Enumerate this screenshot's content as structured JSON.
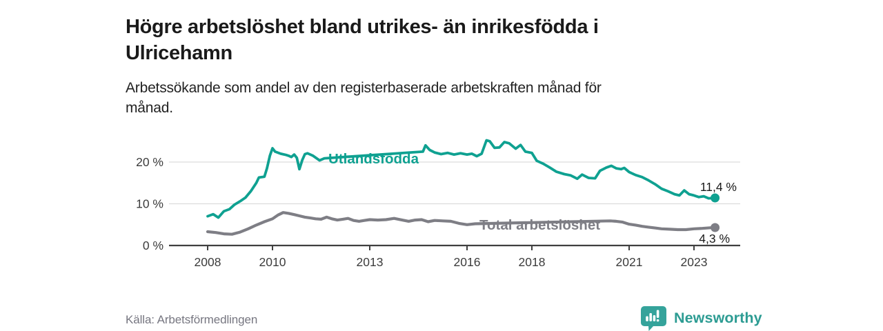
{
  "header": {
    "title_line1": "Högre arbetslöshet bland utrikes- än inrikesfödda i",
    "title_line2": "Ulricehamn",
    "subtitle_line1": "Arbetssökande som andel av den registerbaserade arbetskraften månad för",
    "subtitle_line2": "månad."
  },
  "footer": {
    "source": "Källa: Arbetsförmedlingen",
    "logo_text": "Newsworthy",
    "logo_icon": "bar-chart-speech-bubble-icon"
  },
  "colors": {
    "teal_line": "#0FA191",
    "gray_line": "#7E7E85",
    "title_text": "#1a1a1a",
    "axis_text": "#3c3c3c",
    "gridline": "#dcdcdc",
    "axis_line": "#3f3f3f",
    "value_label_text": "#1a1a1a",
    "source_text": "#767680",
    "logo_teal": "#35a39b",
    "logo_wordmark": "#2d9c93"
  },
  "chart_data": {
    "type": "line",
    "title": "Högre arbetslöshet bland utrikes- än inrikesfödda i Ulricehamn",
    "subtitle": "Arbetssökande som andel av den registerbaserade arbetskraften månad för månad.",
    "unit": "%",
    "grid": "horizontal-only",
    "legend": "inline-labels-on-lines",
    "x_axis": {
      "range": [
        2007.8,
        2024.2
      ],
      "ticks": [
        {
          "year": 2008,
          "label": "2008"
        },
        {
          "year": 2010,
          "label": "2010"
        },
        {
          "year": 2013,
          "label": "2013"
        },
        {
          "year": 2016,
          "label": "2016"
        },
        {
          "year": 2018,
          "label": "2018"
        },
        {
          "year": 2021,
          "label": "2021"
        },
        {
          "year": 2023,
          "label": "2023"
        }
      ]
    },
    "y_axis": {
      "range": [
        0,
        27
      ],
      "ticks": [
        {
          "value": 0,
          "label": "0 %"
        },
        {
          "value": 10,
          "label": "10 %"
        },
        {
          "value": 20,
          "label": "20 %"
        }
      ]
    },
    "series": [
      {
        "name": "Utlandsfödda",
        "color": "#0FA191",
        "end_label": "11,4 %",
        "end_value": 11.4,
        "label_gap_years": [
          2011.66,
          2014.6
        ],
        "points": [
          [
            2008.0,
            7.0
          ],
          [
            2008.17,
            7.5
          ],
          [
            2008.33,
            6.7
          ],
          [
            2008.5,
            8.2
          ],
          [
            2008.67,
            8.7
          ],
          [
            2008.83,
            9.8
          ],
          [
            2009.0,
            10.6
          ],
          [
            2009.17,
            11.5
          ],
          [
            2009.33,
            13.0
          ],
          [
            2009.5,
            15.0
          ],
          [
            2009.58,
            16.3
          ],
          [
            2009.75,
            16.5
          ],
          [
            2009.83,
            18.5
          ],
          [
            2009.92,
            21.5
          ],
          [
            2010.0,
            23.3
          ],
          [
            2010.08,
            22.5
          ],
          [
            2010.25,
            22.0
          ],
          [
            2010.42,
            21.7
          ],
          [
            2010.5,
            21.5
          ],
          [
            2010.58,
            21.2
          ],
          [
            2010.67,
            21.8
          ],
          [
            2010.75,
            21.0
          ],
          [
            2010.83,
            18.3
          ],
          [
            2010.92,
            20.5
          ],
          [
            2011.0,
            21.9
          ],
          [
            2011.08,
            22.1
          ],
          [
            2011.25,
            21.5
          ],
          [
            2011.45,
            20.4
          ],
          [
            2011.6,
            20.9
          ],
          [
            2014.64,
            22.5
          ],
          [
            2014.72,
            24.0
          ],
          [
            2014.85,
            22.9
          ],
          [
            2015.0,
            22.3
          ],
          [
            2015.2,
            21.9
          ],
          [
            2015.4,
            22.2
          ],
          [
            2015.6,
            21.8
          ],
          [
            2015.8,
            22.1
          ],
          [
            2016.0,
            21.8
          ],
          [
            2016.15,
            22.0
          ],
          [
            2016.3,
            21.4
          ],
          [
            2016.45,
            22.0
          ],
          [
            2016.6,
            25.2
          ],
          [
            2016.7,
            25.0
          ],
          [
            2016.85,
            23.4
          ],
          [
            2017.0,
            23.5
          ],
          [
            2017.15,
            24.8
          ],
          [
            2017.3,
            24.5
          ],
          [
            2017.5,
            23.2
          ],
          [
            2017.65,
            24.1
          ],
          [
            2017.8,
            22.5
          ],
          [
            2018.0,
            22.2
          ],
          [
            2018.15,
            20.3
          ],
          [
            2018.35,
            19.6
          ],
          [
            2018.55,
            18.7
          ],
          [
            2018.75,
            17.7
          ],
          [
            2019.0,
            17.1
          ],
          [
            2019.2,
            16.8
          ],
          [
            2019.4,
            16.0
          ],
          [
            2019.55,
            17.0
          ],
          [
            2019.75,
            16.2
          ],
          [
            2019.95,
            16.1
          ],
          [
            2020.1,
            17.9
          ],
          [
            2020.3,
            18.7
          ],
          [
            2020.45,
            19.1
          ],
          [
            2020.6,
            18.5
          ],
          [
            2020.75,
            18.3
          ],
          [
            2020.85,
            18.6
          ],
          [
            2021.0,
            17.6
          ],
          [
            2021.2,
            16.9
          ],
          [
            2021.4,
            16.4
          ],
          [
            2021.6,
            15.6
          ],
          [
            2021.8,
            14.7
          ],
          [
            2022.0,
            13.6
          ],
          [
            2022.2,
            13.0
          ],
          [
            2022.4,
            12.3
          ],
          [
            2022.55,
            12.0
          ],
          [
            2022.7,
            13.2
          ],
          [
            2022.85,
            12.3
          ],
          [
            2023.0,
            12.0
          ],
          [
            2023.15,
            11.6
          ],
          [
            2023.3,
            11.8
          ],
          [
            2023.45,
            11.3
          ],
          [
            2023.65,
            11.4
          ]
        ]
      },
      {
        "name": "Total arbetslöshet",
        "color": "#7E7E85",
        "end_label": "4,3 %",
        "end_value": 4.3,
        "label_gap_years": [
          2016.3,
          2020.38
        ],
        "points": [
          [
            2008.0,
            3.3
          ],
          [
            2008.25,
            3.1
          ],
          [
            2008.5,
            2.8
          ],
          [
            2008.75,
            2.7
          ],
          [
            2009.0,
            3.2
          ],
          [
            2009.25,
            4.0
          ],
          [
            2009.5,
            4.9
          ],
          [
            2009.75,
            5.7
          ],
          [
            2010.0,
            6.4
          ],
          [
            2010.17,
            7.3
          ],
          [
            2010.33,
            7.9
          ],
          [
            2010.5,
            7.7
          ],
          [
            2010.67,
            7.4
          ],
          [
            2010.83,
            7.1
          ],
          [
            2011.0,
            6.8
          ],
          [
            2011.17,
            6.6
          ],
          [
            2011.33,
            6.4
          ],
          [
            2011.5,
            6.3
          ],
          [
            2011.67,
            6.8
          ],
          [
            2011.83,
            6.4
          ],
          [
            2012.0,
            6.1
          ],
          [
            2012.17,
            6.3
          ],
          [
            2012.33,
            6.5
          ],
          [
            2012.5,
            6.0
          ],
          [
            2012.67,
            5.8
          ],
          [
            2012.83,
            6.0
          ],
          [
            2013.0,
            6.2
          ],
          [
            2013.25,
            6.1
          ],
          [
            2013.5,
            6.2
          ],
          [
            2013.75,
            6.5
          ],
          [
            2014.0,
            6.1
          ],
          [
            2014.2,
            5.8
          ],
          [
            2014.4,
            6.1
          ],
          [
            2014.6,
            6.2
          ],
          [
            2014.8,
            5.7
          ],
          [
            2015.0,
            6.0
          ],
          [
            2015.25,
            5.9
          ],
          [
            2015.5,
            5.8
          ],
          [
            2015.75,
            5.3
          ],
          [
            2016.0,
            5.0
          ],
          [
            2016.25,
            5.2
          ],
          [
            2020.42,
            5.9
          ],
          [
            2020.6,
            5.8
          ],
          [
            2020.8,
            5.6
          ],
          [
            2021.0,
            5.1
          ],
          [
            2021.2,
            4.9
          ],
          [
            2021.4,
            4.6
          ],
          [
            2021.6,
            4.4
          ],
          [
            2021.8,
            4.2
          ],
          [
            2022.0,
            4.0
          ],
          [
            2022.25,
            3.9
          ],
          [
            2022.5,
            3.8
          ],
          [
            2022.75,
            3.8
          ],
          [
            2023.0,
            4.0
          ],
          [
            2023.25,
            4.1
          ],
          [
            2023.5,
            4.25
          ],
          [
            2023.65,
            4.3
          ]
        ]
      }
    ]
  }
}
